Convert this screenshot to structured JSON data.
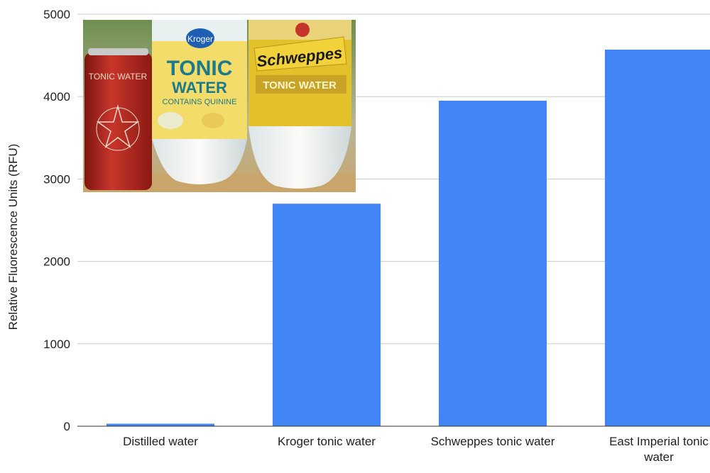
{
  "chart_data": {
    "type": "bar",
    "ylabel": "Relative Fluorescence Units (RFU)",
    "xlabel": "",
    "title": "",
    "ylim": [
      0,
      5000
    ],
    "yticks": [
      0,
      1000,
      2000,
      3000,
      4000,
      5000
    ],
    "grid": true,
    "legend": "none",
    "bar_color": "#4285f4",
    "categories": [
      "Distilled water",
      "Kroger tonic water",
      "Schweppes tonic water",
      "East Imperial tonic water"
    ],
    "category_lines": [
      [
        "Distilled water"
      ],
      [
        "Kroger tonic water"
      ],
      [
        "Schweppes tonic water"
      ],
      [
        "East Imperial tonic",
        "water"
      ]
    ],
    "values": [
      30,
      2700,
      3950,
      4570
    ]
  },
  "photo": {
    "can_label": "TONIC WATER",
    "kroger_logo": "Kroger",
    "kroger_line1": "TONIC",
    "kroger_line2": "WATER",
    "kroger_line3": "CONTAINS QUININE",
    "schweppes_logo": "Schweppes",
    "schweppes_label": "TONIC WATER",
    "colors": {
      "can": "#b8261e",
      "kroger_label": "#f3dc6a",
      "kroger_text": "#1d7a8a",
      "schweppes_label": "#e3c12a",
      "background": "#4e6e3a",
      "table": "#c9a56b"
    }
  }
}
